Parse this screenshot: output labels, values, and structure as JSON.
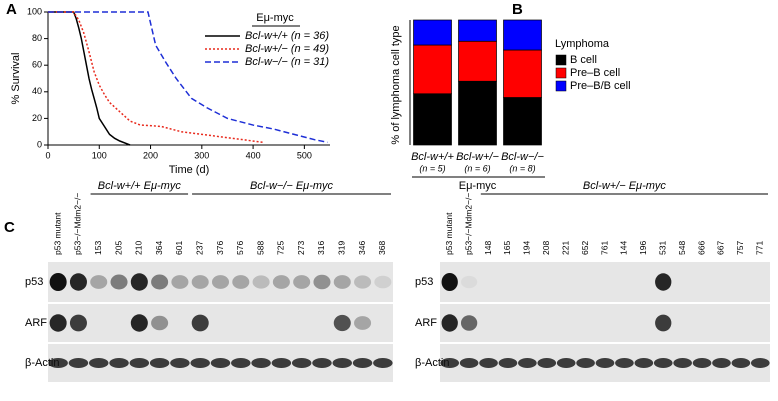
{
  "chart_data": [
    {
      "type": "line",
      "panel_label": "A",
      "xlabel": "Time (d)",
      "ylabel": "% Survival",
      "legend_title": "Eμ-myc",
      "xlim": [
        0,
        550
      ],
      "xticks": [
        0,
        100,
        200,
        300,
        400,
        500
      ],
      "ylim": [
        0,
        100
      ],
      "yticks": [
        0,
        20,
        40,
        60,
        80,
        100
      ],
      "series": [
        {
          "name": "Bcl-w+/+ (n = 36)",
          "color": "#000000",
          "dash": "solid",
          "x": [
            0,
            50,
            55,
            60,
            65,
            70,
            75,
            80,
            85,
            90,
            95,
            100,
            110,
            120,
            130,
            140,
            160
          ],
          "values": [
            100,
            100,
            95,
            88,
            80,
            70,
            60,
            50,
            42,
            35,
            28,
            20,
            14,
            8,
            5,
            3,
            0
          ]
        },
        {
          "name": "Bcl-w+/− (n = 49)",
          "color": "#e8291c",
          "dash": "dotted",
          "x": [
            0,
            50,
            60,
            70,
            80,
            90,
            100,
            110,
            120,
            140,
            160,
            180,
            220,
            260,
            300,
            340,
            380,
            420
          ],
          "values": [
            100,
            100,
            94,
            84,
            70,
            55,
            45,
            38,
            32,
            25,
            18,
            15,
            14,
            10,
            8,
            6,
            4,
            2
          ]
        },
        {
          "name": "Bcl-w−/− (n = 31)",
          "color": "#1e2fd6",
          "dash": "dashed",
          "x": [
            0,
            195,
            210,
            230,
            250,
            280,
            310,
            350,
            400,
            440,
            480,
            520,
            545
          ],
          "values": [
            100,
            100,
            75,
            62,
            50,
            35,
            28,
            20,
            15,
            12,
            8,
            4,
            2
          ]
        }
      ]
    },
    {
      "type": "bar",
      "panel_label": "B",
      "ylabel": "% of lymphoma cell type",
      "xlabel": "Eμ-myc",
      "legend_title": "Lymphoma",
      "stacked": true,
      "categories": [
        "Bcl-w+/+",
        "Bcl-w+/−",
        "Bcl-w−/−"
      ],
      "n_labels": [
        "(n = 5)",
        "(n = 6)",
        "(n = 8)"
      ],
      "ylim": [
        0,
        100
      ],
      "series": [
        {
          "name": "B cell",
          "color": "#000000",
          "values": [
            41,
            51,
            38
          ]
        },
        {
          "name": "Pre–B cell",
          "color": "#ff0000",
          "values": [
            39,
            32,
            38
          ]
        },
        {
          "name": "Pre–B/B cell",
          "color": "#0000ff",
          "values": [
            20,
            17,
            24
          ]
        }
      ]
    }
  ],
  "panel_c": {
    "label": "C",
    "blots": [
      {
        "controls": [
          "p53 mutant",
          "p53−/−Mdm2−/−"
        ],
        "groups": [
          {
            "label": "Bcl-w+/+ Eμ-myc",
            "lanes": [
              "153",
              "205",
              "210",
              "364",
              "601"
            ]
          },
          {
            "label": "Bcl-w−/− Eμ-myc",
            "lanes": [
              "237",
              "376",
              "576",
              "588",
              "725",
              "273",
              "316",
              "319",
              "346",
              "368"
            ]
          }
        ],
        "rows": [
          "p53",
          "ARF",
          "β-Actin"
        ]
      },
      {
        "controls": [
          "p53 mutant",
          "p53−/−Mdm2−/−"
        ],
        "groups": [
          {
            "label": "Bcl-w+/− Eμ-myc",
            "lanes": [
              "148",
              "165",
              "194",
              "208",
              "221",
              "652",
              "761",
              "144",
              "196",
              "531",
              "548",
              "666",
              "667",
              "757",
              "771"
            ]
          }
        ],
        "rows": [
          "p53",
          "ARF",
          "β-Actin"
        ]
      }
    ]
  }
}
